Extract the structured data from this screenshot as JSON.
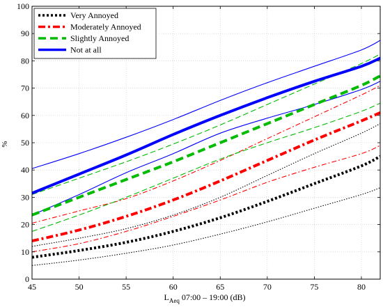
{
  "chart_data": {
    "type": "line",
    "title": "",
    "xlabel_main": "L",
    "xlabel_sub": "Aeq",
    "xlabel_rest": " 07:00 – 19:00 (dB)",
    "ylabel": "%",
    "xlim": [
      45,
      82
    ],
    "ylim": [
      0,
      100
    ],
    "xticks": [
      45,
      50,
      55,
      60,
      65,
      70,
      75,
      80
    ],
    "yticks": [
      0,
      10,
      20,
      30,
      40,
      50,
      60,
      70,
      80,
      90,
      100
    ],
    "grid": true,
    "legend_position": "top-left",
    "series": [
      {
        "name": "Very Annoyed",
        "color": "#000000",
        "dash": "dotted",
        "x": [
          45,
          50,
          55,
          60,
          65,
          70,
          75,
          80,
          82
        ],
        "y": [
          8,
          10.5,
          13.5,
          17.5,
          22.5,
          28.5,
          35,
          41.5,
          45
        ],
        "lower": [
          5,
          7,
          9.5,
          12.5,
          16.5,
          21,
          26,
          31,
          33.5
        ],
        "upper": [
          12,
          15,
          18.5,
          23.5,
          30,
          38,
          46,
          53.5,
          57
        ]
      },
      {
        "name": "Moderately Annoyed",
        "color": "#ff0000",
        "dash": "dashdot",
        "x": [
          45,
          50,
          55,
          60,
          65,
          70,
          75,
          80,
          82
        ],
        "y": [
          14,
          18,
          23,
          29,
          36,
          43.5,
          51,
          58,
          61
        ],
        "lower": [
          10,
          13,
          17.5,
          23,
          29,
          35.5,
          41,
          46,
          49
        ],
        "upper": [
          20.5,
          25,
          29.5,
          36,
          43.5,
          51.5,
          59.5,
          67.5,
          71
        ]
      },
      {
        "name": "Slightly Annoyed",
        "color": "#00bb00",
        "dash": "dashed",
        "x": [
          45,
          50,
          55,
          60,
          65,
          70,
          75,
          80,
          82
        ],
        "y": [
          23.5,
          30,
          36.5,
          43,
          50,
          57,
          64,
          71,
          74.5
        ],
        "lower": [
          17.5,
          23.5,
          30,
          37,
          44,
          50,
          55.5,
          61.5,
          64.5
        ],
        "upper": [
          31,
          37,
          43,
          49.5,
          56.5,
          64,
          71.5,
          79,
          82.5
        ]
      },
      {
        "name": "Not at all",
        "color": "#0000ff",
        "dash": "solid",
        "x": [
          45,
          50,
          55,
          60,
          65,
          70,
          75,
          80,
          82
        ],
        "y": [
          31.5,
          38.5,
          45.5,
          53,
          60,
          66.5,
          72.5,
          78,
          81
        ],
        "lower": [
          23.5,
          31,
          39,
          46,
          53.5,
          59,
          64,
          69.5,
          72.5
        ],
        "upper": [
          40.5,
          46,
          52,
          58.5,
          65.5,
          72,
          78,
          84,
          87.5
        ]
      }
    ]
  }
}
